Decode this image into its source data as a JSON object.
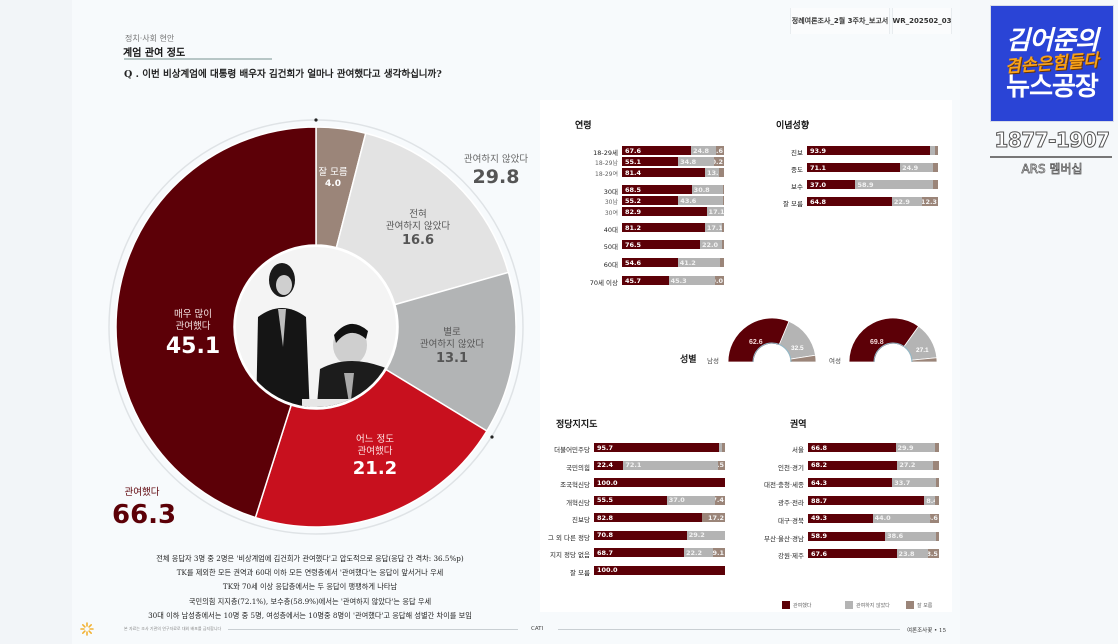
{
  "header": {
    "report_name": "정례여론조사_2월 3주차_보고서",
    "report_code": "WR_202502_03"
  },
  "section": {
    "category": "정치·사회 현안",
    "title": "계엄 관여 정도",
    "question": "Q . 이번 비상계엄에 대통령 배우자 김건희가 얼마나 관여했다고 생각하십니까?"
  },
  "donut": {
    "slices": [
      {
        "label": "매우 많이 관여했다",
        "value": "45.1",
        "color": "#5c0007"
      },
      {
        "label": "어느 정도 관여했다",
        "value": "21.2",
        "color": "#c8101e"
      },
      {
        "label": "별로 관여하지 않았다",
        "value": "13.1",
        "color": "#b2b4b5"
      },
      {
        "label": "전혀 관여하지 않았다",
        "value": "16.6",
        "color": "#e3e3e3"
      },
      {
        "label": "잘 모름",
        "value": "4.0",
        "color": "#9b8579"
      }
    ],
    "labels": {
      "very_much_l1": "매우 많이",
      "very_much_l2": "관여했다",
      "somewhat_l1": "어느 정도",
      "somewhat_l2": "관여했다",
      "not_much_l1": "별로",
      "not_much_l2": "관여하지 않았다",
      "not_at_all_l1": "전혀",
      "not_at_all_l2": "관여하지 않았다",
      "dont_know": "잘 모름"
    },
    "totals": {
      "involved_label": "관여했다",
      "involved_value": "66.3",
      "not_involved_label": "관여하지 않았다",
      "not_involved_value": "29.8"
    }
  },
  "chart_data": [
    {
      "type": "pie",
      "title": "계엄 관여 정도",
      "categories": [
        "매우 많이 관여했다",
        "어느 정도 관여했다",
        "별로 관여하지 않았다",
        "전혀 관여하지 않았다",
        "잘 모름"
      ],
      "values": [
        45.1,
        21.2,
        13.1,
        16.6,
        4.0
      ],
      "annotations": [
        {
          "label": "관여했다",
          "value": 66.3
        },
        {
          "label": "관여하지 않았다",
          "value": 29.8
        }
      ]
    },
    {
      "type": "bar",
      "stacked": true,
      "orientation": "horizontal",
      "title": "연령",
      "categories": [
        "18-29세",
        "18-29남",
        "18-29여",
        "30대",
        "30남",
        "30여",
        "40대",
        "50대",
        "60대",
        "70세 이상"
      ],
      "series": [
        {
          "name": "관여했다",
          "values": [
            67.6,
            55.1,
            81.4,
            68.5,
            55.2,
            82.9,
            81.2,
            76.5,
            54.6,
            45.7
          ]
        },
        {
          "name": "관여하지 않았다",
          "values": [
            24.8,
            34.8,
            13.9,
            30.8,
            43.6,
            17.1,
            17.1,
            22.0,
            41.2,
            45.3
          ]
        },
        {
          "name": "잘 모름",
          "values": [
            7.6,
            10.2,
            4.7,
            0.7,
            1.2,
            0.0,
            1.7,
            1.5,
            4.2,
            9.0
          ]
        }
      ]
    },
    {
      "type": "bar",
      "stacked": true,
      "orientation": "horizontal",
      "title": "이념성향",
      "categories": [
        "진보",
        "중도",
        "보수",
        "잘 모름"
      ],
      "series": [
        {
          "name": "관여했다",
          "values": [
            93.9,
            71.1,
            37.0,
            64.8
          ]
        },
        {
          "name": "관여하지 않았다",
          "values": [
            3.6,
            24.9,
            58.9,
            22.9
          ]
        },
        {
          "name": "잘 모름",
          "values": [
            2.5,
            4.0,
            4.1,
            12.3
          ]
        }
      ]
    },
    {
      "type": "pie",
      "title": "성별",
      "categories": [
        "남성",
        "여성"
      ],
      "series": [
        {
          "name": "관여했다",
          "values": [
            62.6,
            69.8
          ]
        },
        {
          "name": "관여하지 않았다",
          "values": [
            32.5,
            27.1
          ]
        },
        {
          "name": "잘 모름",
          "values": [
            4.9,
            3.1
          ]
        }
      ]
    },
    {
      "type": "bar",
      "stacked": true,
      "orientation": "horizontal",
      "title": "정당지지도",
      "categories": [
        "더불어민주당",
        "국민의힘",
        "조국혁신당",
        "개혁신당",
        "진보당",
        "그 외 다른 정당",
        "지지 정당 없음",
        "잘 모름"
      ],
      "series": [
        {
          "name": "관여했다",
          "values": [
            95.7,
            22.4,
            100.0,
            55.5,
            82.8,
            70.8,
            68.7,
            100.0
          ]
        },
        {
          "name": "관여하지 않았다",
          "values": [
            2.2,
            72.1,
            0,
            37.0,
            0,
            29.2,
            22.2,
            0
          ]
        },
        {
          "name": "잘 모름",
          "values": [
            2.1,
            5.5,
            0,
            7.4,
            17.2,
            0,
            9.1,
            0
          ]
        }
      ]
    },
    {
      "type": "bar",
      "stacked": true,
      "orientation": "horizontal",
      "title": "권역",
      "categories": [
        "서울",
        "인천·경기",
        "대전·충청·세종",
        "광주·전라",
        "대구·경북",
        "부산·울산·경남",
        "강원·제주"
      ],
      "series": [
        {
          "name": "관여했다",
          "values": [
            66.8,
            68.2,
            64.3,
            88.7,
            49.3,
            58.9,
            67.6
          ]
        },
        {
          "name": "관여하지 않았다",
          "values": [
            29.9,
            27.2,
            33.7,
            8.4,
            44.0,
            38.6,
            23.8
          ]
        },
        {
          "name": "잘 모름",
          "values": [
            3.3,
            4.6,
            2.0,
            2.9,
            6.6,
            2.5,
            8.5
          ]
        }
      ]
    }
  ],
  "age": {
    "title": "연령",
    "rows": [
      {
        "label": "18-29세",
        "sub": false,
        "a": 67.6,
        "b": 24.8,
        "c": 7.6,
        "al": "67.6",
        "bl": "24.8",
        "cl": "7.6"
      },
      {
        "label": "18-29남",
        "sub": true,
        "a": 55.1,
        "b": 34.8,
        "c": 10.2,
        "al": "55.1",
        "bl": "34.8",
        "cl": "10.2"
      },
      {
        "label": "18-29여",
        "sub": true,
        "a": 81.4,
        "b": 13.9,
        "c": 4.7,
        "al": "81.4",
        "bl": "13.9",
        "cl": ""
      },
      {
        "label": "30대",
        "sub": false,
        "a": 68.5,
        "b": 30.8,
        "c": 0.7,
        "al": "68.5",
        "bl": "30.8",
        "cl": ""
      },
      {
        "label": "30남",
        "sub": true,
        "a": 55.2,
        "b": 43.6,
        "c": 1.2,
        "al": "55.2",
        "bl": "43.6",
        "cl": ""
      },
      {
        "label": "30여",
        "sub": true,
        "a": 82.9,
        "b": 17.1,
        "c": 0,
        "al": "82.9",
        "bl": "17.1",
        "cl": ""
      },
      {
        "label": "40대",
        "sub": false,
        "a": 81.2,
        "b": 17.1,
        "c": 1.7,
        "al": "81.2",
        "bl": "17.1",
        "cl": ""
      },
      {
        "label": "50대",
        "sub": false,
        "a": 76.5,
        "b": 22.0,
        "c": 1.5,
        "al": "76.5",
        "bl": "22.0",
        "cl": ""
      },
      {
        "label": "60대",
        "sub": false,
        "a": 54.6,
        "b": 41.2,
        "c": 4.2,
        "al": "54.6",
        "bl": "41.2",
        "cl": ""
      },
      {
        "label": "70세 이상",
        "sub": false,
        "a": 45.7,
        "b": 45.3,
        "c": 9.0,
        "al": "45.7",
        "bl": "45.3",
        "cl": "9.0"
      }
    ]
  },
  "ideology": {
    "title": "이념성향",
    "rows": [
      {
        "label": "진보",
        "a": 93.9,
        "b": 3.6,
        "c": 2.5,
        "al": "93.9",
        "bl": "",
        "cl": ""
      },
      {
        "label": "중도",
        "a": 71.1,
        "b": 24.9,
        "c": 4.0,
        "al": "71.1",
        "bl": "24.9",
        "cl": ""
      },
      {
        "label": "보수",
        "a": 37.0,
        "b": 58.9,
        "c": 4.1,
        "al": "37.0",
        "bl": "58.9",
        "cl": ""
      },
      {
        "label": "잘 모름",
        "a": 64.8,
        "b": 22.9,
        "c": 12.3,
        "al": "64.8",
        "bl": "22.9",
        "cl": "12.3"
      }
    ]
  },
  "gender": {
    "title": "성별",
    "male_label": "남성",
    "female_label": "여성",
    "male": {
      "a": "62.6",
      "b": "32.5"
    },
    "female": {
      "a": "69.8",
      "b": "27.1"
    }
  },
  "party": {
    "title": "정당지지도",
    "rows": [
      {
        "label": "더불어민주당",
        "a": 95.7,
        "b": 2.2,
        "c": 2.1,
        "al": "95.7",
        "bl": "",
        "cl": ""
      },
      {
        "label": "국민의힘",
        "a": 22.4,
        "b": 72.1,
        "c": 5.5,
        "al": "22.4",
        "bl": "72.1",
        "cl": "5.5"
      },
      {
        "label": "조국혁신당",
        "a": 100.0,
        "b": 0,
        "c": 0,
        "al": "100.0",
        "bl": "",
        "cl": ""
      },
      {
        "label": "개혁신당",
        "a": 55.5,
        "b": 37.0,
        "c": 7.4,
        "al": "55.5",
        "bl": "37.0",
        "cl": "7.4"
      },
      {
        "label": "진보당",
        "a": 82.8,
        "b": 0,
        "c": 17.2,
        "al": "82.8",
        "bl": "",
        "cl": "17.2"
      },
      {
        "label": "그 외 다른 정당",
        "a": 70.8,
        "b": 29.2,
        "c": 0,
        "al": "70.8",
        "bl": "29.2",
        "cl": ""
      },
      {
        "label": "지지 정당 없음",
        "a": 68.7,
        "b": 22.2,
        "c": 9.1,
        "al": "68.7",
        "bl": "22.2",
        "cl": "9.1"
      },
      {
        "label": "잘 모름",
        "a": 100.0,
        "b": 0,
        "c": 0,
        "al": "100.0",
        "bl": "",
        "cl": ""
      }
    ]
  },
  "region": {
    "title": "권역",
    "rows": [
      {
        "label": "서울",
        "a": 66.8,
        "b": 29.9,
        "c": 3.3,
        "al": "66.8",
        "bl": "29.9",
        "cl": ""
      },
      {
        "label": "인천·경기",
        "a": 68.2,
        "b": 27.2,
        "c": 4.6,
        "al": "68.2",
        "bl": "27.2",
        "cl": ""
      },
      {
        "label": "대전·충청·세종",
        "a": 64.3,
        "b": 33.7,
        "c": 2.0,
        "al": "64.3",
        "bl": "33.7",
        "cl": ""
      },
      {
        "label": "광주·전라",
        "a": 88.7,
        "b": 8.4,
        "c": 2.9,
        "al": "88.7",
        "bl": "8.4",
        "cl": ""
      },
      {
        "label": "대구·경북",
        "a": 49.3,
        "b": 44.0,
        "c": 6.6,
        "al": "49.3",
        "bl": "44.0",
        "cl": "6.6"
      },
      {
        "label": "부산·울산·경남",
        "a": 58.9,
        "b": 38.6,
        "c": 2.5,
        "al": "58.9",
        "bl": "38.6",
        "cl": ""
      },
      {
        "label": "강원·제주",
        "a": 67.6,
        "b": 23.8,
        "c": 8.5,
        "al": "67.6",
        "bl": "23.8",
        "cl": "8.5"
      }
    ]
  },
  "legend": {
    "items": [
      {
        "label": "관여했다",
        "color": "#5c0007"
      },
      {
        "label": "관여하지 않았다",
        "color": "#b4b4b4"
      },
      {
        "label": "잘 모름",
        "color": "#9b8579"
      }
    ]
  },
  "summary": {
    "lines": [
      "전체 응답자 3명 중 2명은 '비상계엄에  김건희가 관여했다'고 압도적으로 응답(응답 간 격차: 36.5%p)",
      "TK를 제외한 모든 권역과 60대 이하 모든 연령층에서 '관여했다'는 응답이 앞서거나 우세",
      "TK와 70세 이상 응답층에서는 두 응답이 팽팽하게 나타남",
      "국민의힘 지지층(72.1%), 보수층(58.9%)에서는 '관여하지 않았다'는 응답 우세",
      "30대 이하 남성층에서는 10명 중 5명, 여성층에서는 10명중 8명이 '관여했다'고 응답해 성별간 차이를 보임"
    ]
  },
  "footer": {
    "note": "본 자료는 조사 기관의 연구자료로 대외 배포를 금지합니다",
    "method": "CATI",
    "page": "여론조사꽃 • 15"
  },
  "overlay": {
    "logo_line1": "김어준의",
    "logo_line2": "겸손은힘들다",
    "logo_line3": "뉴스공장",
    "ars_number": "1877-1907",
    "ars_label": "ARS 멤버십"
  }
}
